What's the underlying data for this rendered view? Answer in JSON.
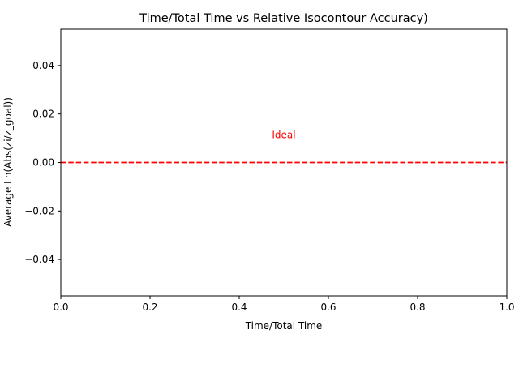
{
  "chart_data": {
    "type": "line",
    "title": "Time/Total Time vs Relative Isocontour Accuracy)",
    "xlabel": "Time/Total Time",
    "ylabel": "Average Ln(Abs(zi/z_goal))",
    "xlim": [
      0.0,
      1.0
    ],
    "ylim": [
      -0.055,
      0.055
    ],
    "x_ticks": [
      0.0,
      0.2,
      0.4,
      0.6,
      0.8,
      1.0
    ],
    "x_tick_labels": [
      "0.0",
      "0.2",
      "0.4",
      "0.6",
      "0.8",
      "1.0"
    ],
    "y_ticks": [
      -0.04,
      -0.02,
      0.0,
      0.02,
      0.04
    ],
    "y_tick_labels": [
      "−0.04",
      "−0.02",
      "0.00",
      "0.02",
      "0.04"
    ],
    "grid": false,
    "series": [
      {
        "name": "Ideal",
        "x": [
          0.0,
          1.0
        ],
        "values": [
          0.0,
          0.0
        ],
        "color": "#ff0000",
        "line_style": "dashed"
      }
    ],
    "annotations": [
      {
        "text": "Ideal",
        "x": 0.5,
        "y": 0.01,
        "color": "#ff0000"
      }
    ]
  }
}
